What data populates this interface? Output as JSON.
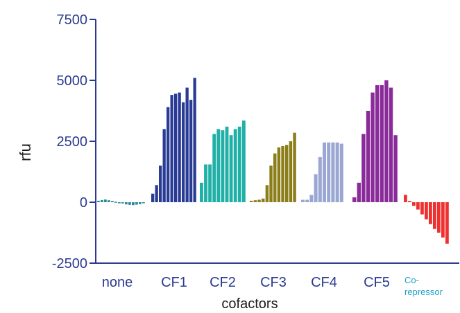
{
  "chart_data": {
    "type": "bar",
    "ylabel": "rfu",
    "xlabel": "cofactors",
    "ylim": [
      -2500,
      7500
    ],
    "yticks": [
      "7500",
      "5000",
      "2500",
      "0",
      "-2500"
    ],
    "groups": [
      {
        "label": "none",
        "color": "#2e8b9a",
        "values": [
          60,
          90,
          110,
          80,
          50,
          20,
          -20,
          -50,
          -90,
          -110,
          -120,
          -100,
          -80,
          -40
        ]
      },
      {
        "label": "CF1",
        "color": "#2a3b96",
        "values": [
          350,
          700,
          1500,
          3000,
          3900,
          4400,
          4450,
          4500,
          4100,
          4700,
          4200,
          5100
        ]
      },
      {
        "label": "CF2",
        "color": "#21b0a7",
        "values": [
          800,
          1550,
          1550,
          2800,
          3000,
          2950,
          3100,
          2750,
          3000,
          3100,
          3350
        ]
      },
      {
        "label": "CF3",
        "color": "#8b7d1a",
        "values": [
          60,
          80,
          100,
          150,
          700,
          1500,
          2000,
          2250,
          2300,
          2350,
          2500,
          2850
        ]
      },
      {
        "label": "CF4",
        "color": "#9aa7d3",
        "values": [
          100,
          100,
          300,
          1150,
          1850,
          2450,
          2450,
          2450,
          2450,
          2400
        ]
      },
      {
        "label": "CF5",
        "color": "#8a2b9a",
        "values": [
          200,
          800,
          2800,
          3750,
          4500,
          4800,
          4800,
          5000,
          4700,
          2750
        ]
      },
      {
        "label": "Co-\nrepressor",
        "color": "#ee3030",
        "values": [
          300,
          50,
          -150,
          -300,
          -500,
          -700,
          -900,
          -1100,
          -1250,
          -1450,
          -1700
        ]
      }
    ]
  },
  "colors": {
    "axis": "#2b3a8f",
    "tick_label": "#2b3a8f",
    "axis_title": "#1a1a1a",
    "group_label": "#2b3a8f",
    "corepressor_label": "#1ea0c8"
  }
}
